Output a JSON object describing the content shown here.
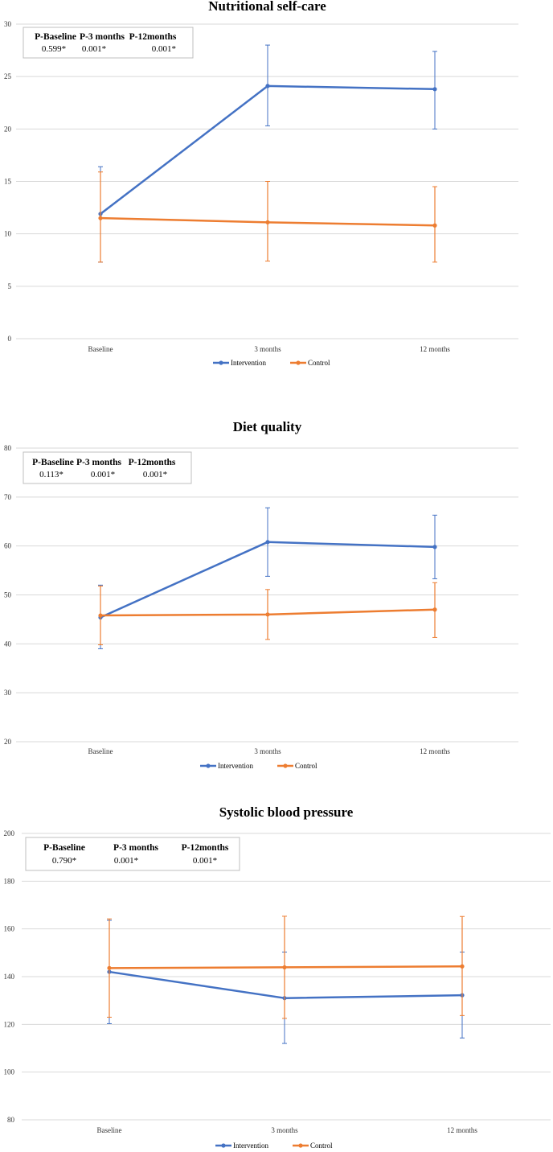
{
  "chart_data": [
    {
      "type": "line",
      "title": "Nutritional self-care",
      "categories": [
        "Baseline",
        "3 months",
        "12 months"
      ],
      "ylim": [
        0,
        30
      ],
      "yticks": [
        0,
        5,
        10,
        15,
        20,
        25,
        30
      ],
      "grid": true,
      "legend_position": "bottom",
      "series": [
        {
          "name": "Intervention",
          "color": "#4472C4",
          "values": [
            11.9,
            24.1,
            23.8
          ],
          "err_low": [
            7.3,
            20.3,
            20.0
          ],
          "err_high": [
            16.4,
            28.0,
            27.4
          ]
        },
        {
          "name": "Control",
          "color": "#ED7D31",
          "values": [
            11.5,
            11.1,
            10.8
          ],
          "err_low": [
            7.3,
            7.4,
            7.3
          ],
          "err_high": [
            15.9,
            15.0,
            14.5
          ]
        }
      ],
      "p_table": {
        "headers": [
          "P-Baseline",
          "P-3 months",
          "P-12months"
        ],
        "values": [
          "0.599*",
          "0.001*",
          "0.001*"
        ]
      }
    },
    {
      "type": "line",
      "title": "Diet quality",
      "categories": [
        "Baseline",
        "3 months",
        "12 months"
      ],
      "ylim": [
        20,
        80
      ],
      "yticks": [
        20,
        30,
        40,
        50,
        60,
        70,
        80
      ],
      "grid": true,
      "legend_position": "bottom",
      "series": [
        {
          "name": "Intervention",
          "color": "#4472C4",
          "values": [
            45.4,
            60.8,
            59.8
          ],
          "err_low": [
            39.0,
            53.8,
            53.3
          ],
          "err_high": [
            52.0,
            67.8,
            66.3
          ]
        },
        {
          "name": "Control",
          "color": "#ED7D31",
          "values": [
            45.8,
            46.0,
            47.0
          ],
          "err_low": [
            39.8,
            40.9,
            41.3
          ],
          "err_high": [
            51.8,
            51.1,
            52.5
          ]
        }
      ],
      "p_table": {
        "headers": [
          "P-Baseline",
          "P-3 months",
          "P-12months"
        ],
        "values": [
          "0.113*",
          "0.001*",
          "0.001*"
        ]
      }
    },
    {
      "type": "line",
      "title": "Systolic blood pressure",
      "categories": [
        "Baseline",
        "3 months",
        "12 months"
      ],
      "ylim": [
        80,
        200
      ],
      "yticks": [
        80,
        100,
        120,
        140,
        160,
        180,
        200
      ],
      "grid": true,
      "legend_position": "bottom",
      "series": [
        {
          "name": "Intervention",
          "color": "#4472C4",
          "values": [
            142.0,
            131.0,
            132.2
          ],
          "err_low": [
            120.3,
            112.0,
            114.3
          ],
          "err_high": [
            163.6,
            150.3,
            150.3
          ]
        },
        {
          "name": "Control",
          "color": "#ED7D31",
          "values": [
            143.6,
            143.9,
            144.3
          ],
          "err_low": [
            123.0,
            122.5,
            123.7
          ],
          "err_high": [
            164.2,
            165.3,
            165.2
          ]
        }
      ],
      "p_table": {
        "headers": [
          "P-Baseline",
          "P-3 months",
          "P-12months"
        ],
        "values": [
          "0.790*",
          "0.001*",
          "0.001*"
        ]
      }
    }
  ]
}
